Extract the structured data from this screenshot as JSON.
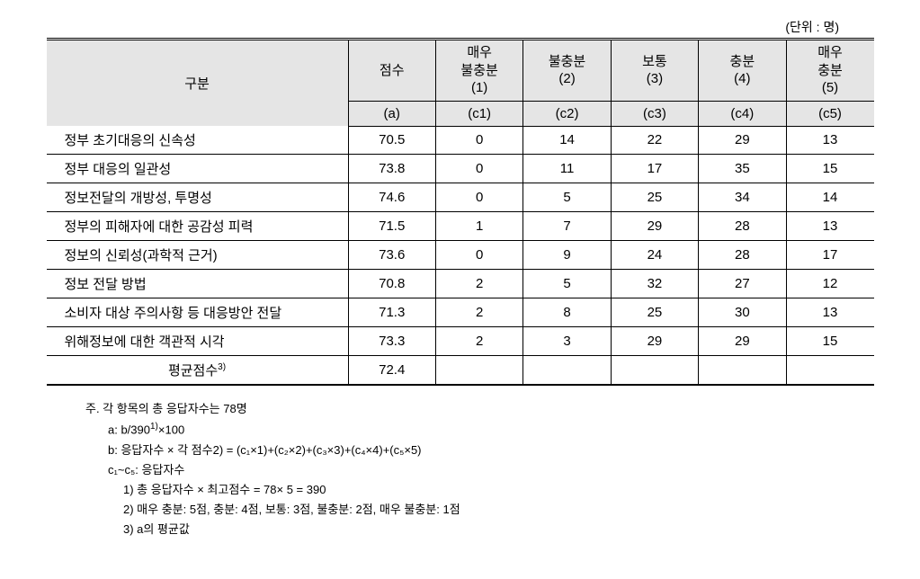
{
  "unit_label": "(단위 : 명)",
  "headers": {
    "category": "구분",
    "score": "점수",
    "c1_line1": "매우",
    "c1_line2": "불충분",
    "c1_line3": "(1)",
    "c2_line1": "불충분",
    "c2_line2": "(2)",
    "c3_line1": "보통",
    "c3_line2": "(3)",
    "c4_line1": "충분",
    "c4_line2": "(4)",
    "c5_line1": "매우",
    "c5_line2": "충분",
    "c5_line3": "(5)",
    "sub_a": "(a)",
    "sub_c1": "(c1)",
    "sub_c2": "(c2)",
    "sub_c3": "(c3)",
    "sub_c4": "(c4)",
    "sub_c5": "(c5)"
  },
  "rows": [
    {
      "label": "정부 초기대응의 신속성",
      "score": "70.5",
      "c1": "0",
      "c2": "14",
      "c3": "22",
      "c4": "29",
      "c5": "13"
    },
    {
      "label": "정부 대응의 일관성",
      "score": "73.8",
      "c1": "0",
      "c2": "11",
      "c3": "17",
      "c4": "35",
      "c5": "15"
    },
    {
      "label": "정보전달의 개방성, 투명성",
      "score": "74.6",
      "c1": "0",
      "c2": "5",
      "c3": "25",
      "c4": "34",
      "c5": "14"
    },
    {
      "label": "정부의 피해자에 대한 공감성 피력",
      "score": "71.5",
      "c1": "1",
      "c2": "7",
      "c3": "29",
      "c4": "28",
      "c5": "13"
    },
    {
      "label": "정보의 신뢰성(과학적 근거)",
      "score": "73.6",
      "c1": "0",
      "c2": "9",
      "c3": "24",
      "c4": "28",
      "c5": "17"
    },
    {
      "label": "정보 전달 방법",
      "score": "70.8",
      "c1": "2",
      "c2": "5",
      "c3": "32",
      "c4": "27",
      "c5": "12"
    },
    {
      "label": "소비자 대상 주의사항 등 대응방안 전달",
      "score": "71.3",
      "c1": "2",
      "c2": "8",
      "c3": "25",
      "c4": "30",
      "c5": "13"
    },
    {
      "label": "위해정보에 대한 객관적 시각",
      "score": "73.3",
      "c1": "2",
      "c2": "3",
      "c3": "29",
      "c4": "29",
      "c5": "15"
    }
  ],
  "average": {
    "label_prefix": "평균점수",
    "label_sup": "3)",
    "score": "72.4"
  },
  "footnotes": {
    "line1": "주. 각 항목의 총 응답자수는 78명",
    "line2_prefix": "a:  b/390",
    "line2_sup": "1)",
    "line2_suffix": "×100",
    "line3": "b:  응답자수 × 각 점수2) = (c₁×1)+(c₂×2)+(c₃×3)+(c₄×4)+(c₅×5)",
    "line4": "c₁~c₅: 응답자수",
    "line5": "1) 총 응답자수 × 최고점수 = 78× 5 = 390",
    "line6": "2) 매우 충분: 5점, 충분: 4점, 보통: 3점, 불충분: 2점, 매우 불충분: 1점",
    "line7": "3) a의 평균값"
  }
}
